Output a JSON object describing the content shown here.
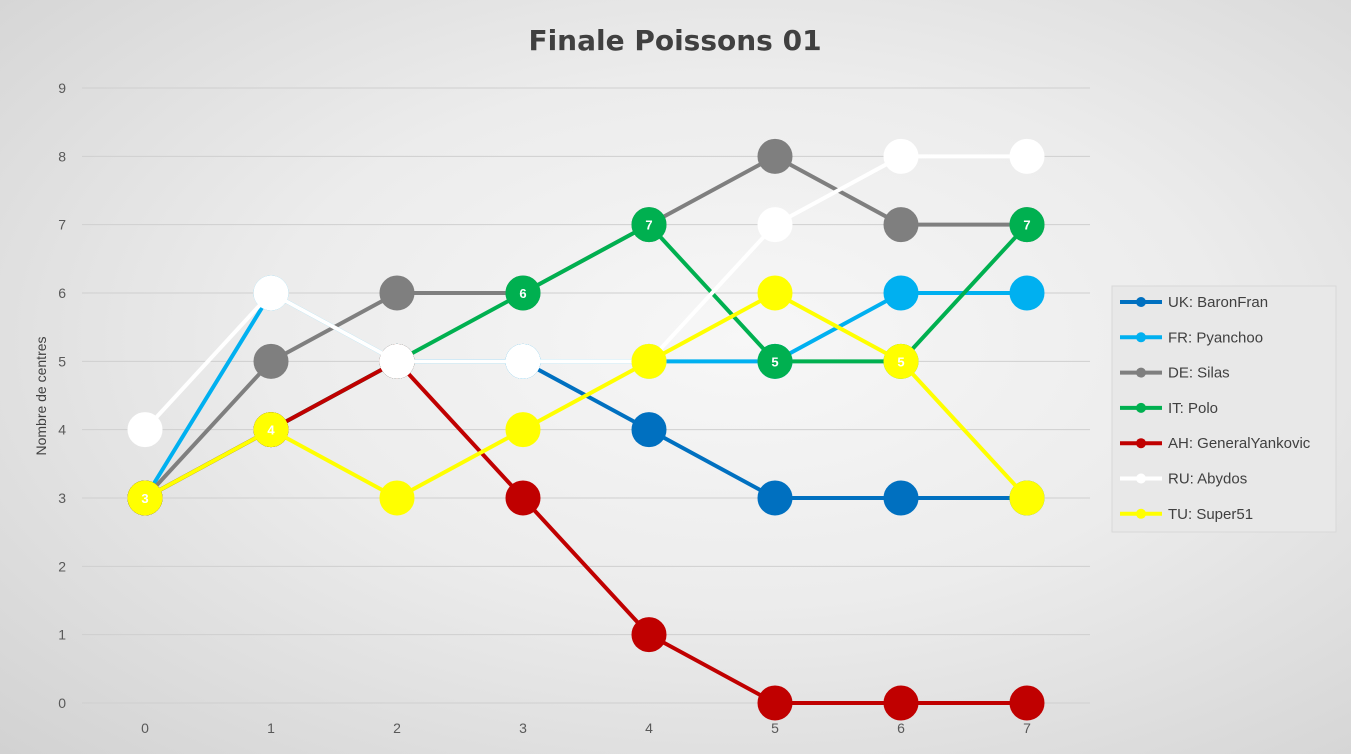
{
  "chart_data": {
    "type": "line",
    "title": "Finale Poissons 01",
    "ylabel": "Nombre de centres",
    "xlabel": "",
    "x": [
      "0",
      "1",
      "2",
      "3",
      "4",
      "5",
      "6",
      "7"
    ],
    "ylim": [
      0,
      9
    ],
    "yticks": [
      0,
      1,
      2,
      3,
      4,
      5,
      6,
      7,
      8,
      9
    ],
    "grid": true,
    "legend_position": "right",
    "series": [
      {
        "name": "UK: BaronFran",
        "color": "#0070c0",
        "values": [
          3,
          4,
          5,
          5,
          4,
          3,
          3,
          3
        ],
        "labels": [
          null,
          null,
          null,
          null,
          null,
          null,
          null,
          null
        ]
      },
      {
        "name": "FR: Pyanchoo",
        "color": "#00b0f0",
        "values": [
          3,
          6,
          5,
          5,
          5,
          5,
          6,
          6
        ],
        "labels": [
          null,
          null,
          null,
          null,
          null,
          null,
          null,
          null
        ]
      },
      {
        "name": "DE: Silas",
        "color": "#7f7f7f",
        "values": [
          3,
          5,
          6,
          6,
          7,
          8,
          7,
          7
        ],
        "labels": [
          null,
          null,
          null,
          null,
          null,
          null,
          null,
          null
        ]
      },
      {
        "name": "IT: Polo",
        "color": "#00b050",
        "values": [
          3,
          4,
          5,
          6,
          7,
          5,
          5,
          7
        ],
        "labels": [
          null,
          null,
          null,
          "6",
          "7",
          "5",
          null,
          "7"
        ]
      },
      {
        "name": "AH: GeneralYankovic",
        "color": "#c00000",
        "values": [
          3,
          4,
          5,
          3,
          1,
          0,
          0,
          0
        ],
        "labels": [
          null,
          null,
          null,
          null,
          null,
          null,
          null,
          null
        ]
      },
      {
        "name": "RU: Abydos",
        "color": "#ffffff",
        "values": [
          4,
          6,
          5,
          5,
          5,
          7,
          8,
          8
        ],
        "labels": [
          null,
          null,
          null,
          null,
          null,
          null,
          null,
          null
        ]
      },
      {
        "name": "TU: Super51",
        "color": "#ffff00",
        "values": [
          3,
          4,
          3,
          4,
          5,
          6,
          5,
          3
        ],
        "labels": [
          "3",
          "4",
          null,
          null,
          null,
          null,
          "5",
          null
        ]
      }
    ]
  }
}
